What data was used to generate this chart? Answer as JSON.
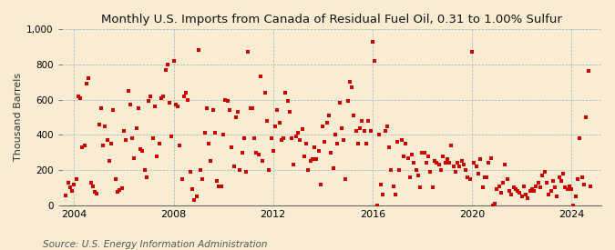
{
  "title": "Monthly U.S. Imports from Canada of Residual Fuel Oil, 0.31 to 1.00% Sulfur",
  "ylabel": "Thousand Barrels",
  "source_text": "Source: U.S. Energy Information Administration",
  "background_color": "#faecd2",
  "plot_bg_color": "#faecd2",
  "dot_color": "#cc0000",
  "ylim": [
    0,
    1000
  ],
  "yticks": [
    0,
    200,
    400,
    600,
    800,
    1000
  ],
  "xlim_start": 2003.5,
  "xlim_end": 2025.2,
  "xticks": [
    2004,
    2008,
    2012,
    2016,
    2020,
    2024
  ],
  "title_fontsize": 9.5,
  "ylabel_fontsize": 8,
  "source_fontsize": 7.5,
  "data_x": [
    2003.67,
    2003.75,
    2003.83,
    2003.92,
    2004.0,
    2004.08,
    2004.17,
    2004.25,
    2004.33,
    2004.42,
    2004.5,
    2004.58,
    2004.67,
    2004.75,
    2004.83,
    2004.92,
    2005.0,
    2005.08,
    2005.17,
    2005.25,
    2005.33,
    2005.42,
    2005.5,
    2005.58,
    2005.67,
    2005.75,
    2005.83,
    2005.92,
    2006.0,
    2006.08,
    2006.17,
    2006.25,
    2006.33,
    2006.42,
    2006.5,
    2006.58,
    2006.67,
    2006.75,
    2006.83,
    2006.92,
    2007.0,
    2007.08,
    2007.17,
    2007.25,
    2007.33,
    2007.42,
    2007.5,
    2007.58,
    2007.67,
    2007.75,
    2007.83,
    2007.92,
    2008.0,
    2008.08,
    2008.17,
    2008.25,
    2008.33,
    2008.42,
    2008.5,
    2008.58,
    2008.67,
    2008.75,
    2008.83,
    2008.92,
    2009.0,
    2009.08,
    2009.17,
    2009.25,
    2009.33,
    2009.42,
    2009.5,
    2009.58,
    2009.67,
    2009.75,
    2009.83,
    2009.92,
    2010.0,
    2010.08,
    2010.17,
    2010.25,
    2010.33,
    2010.42,
    2010.5,
    2010.58,
    2010.67,
    2010.75,
    2010.83,
    2010.92,
    2011.0,
    2011.08,
    2011.17,
    2011.25,
    2011.33,
    2011.42,
    2011.5,
    2011.58,
    2011.67,
    2011.75,
    2011.83,
    2011.92,
    2012.0,
    2012.08,
    2012.17,
    2012.25,
    2012.33,
    2012.42,
    2012.5,
    2012.58,
    2012.67,
    2012.75,
    2012.83,
    2012.92,
    2013.0,
    2013.08,
    2013.17,
    2013.25,
    2013.33,
    2013.42,
    2013.5,
    2013.58,
    2013.67,
    2013.75,
    2013.83,
    2013.92,
    2014.0,
    2014.08,
    2014.17,
    2014.25,
    2014.33,
    2014.42,
    2014.5,
    2014.58,
    2014.67,
    2014.75,
    2014.83,
    2014.92,
    2015.0,
    2015.08,
    2015.17,
    2015.25,
    2015.33,
    2015.42,
    2015.5,
    2015.58,
    2015.67,
    2015.75,
    2015.83,
    2015.92,
    2016.0,
    2016.08,
    2016.17,
    2016.25,
    2016.33,
    2016.42,
    2016.5,
    2016.58,
    2016.67,
    2016.75,
    2016.83,
    2016.92,
    2017.0,
    2017.08,
    2017.17,
    2017.25,
    2017.33,
    2017.42,
    2017.5,
    2017.58,
    2017.67,
    2017.75,
    2017.83,
    2017.92,
    2018.0,
    2018.08,
    2018.17,
    2018.25,
    2018.33,
    2018.42,
    2018.5,
    2018.58,
    2018.67,
    2018.75,
    2018.83,
    2018.92,
    2019.0,
    2019.08,
    2019.17,
    2019.25,
    2019.33,
    2019.42,
    2019.5,
    2019.58,
    2019.67,
    2019.75,
    2019.83,
    2019.92,
    2020.0,
    2020.08,
    2020.17,
    2020.25,
    2020.33,
    2020.42,
    2020.5,
    2020.58,
    2020.67,
    2020.75,
    2020.83,
    2020.92,
    2021.0,
    2021.08,
    2021.17,
    2021.25,
    2021.33,
    2021.42,
    2021.5,
    2021.58,
    2021.67,
    2021.75,
    2021.83,
    2021.92,
    2022.0,
    2022.08,
    2022.17,
    2022.25,
    2022.33,
    2022.42,
    2022.5,
    2022.58,
    2022.67,
    2022.75,
    2022.83,
    2022.92,
    2023.0,
    2023.08,
    2023.17,
    2023.25,
    2023.33,
    2023.42,
    2023.5,
    2023.58,
    2023.67,
    2023.75,
    2023.83,
    2023.92,
    2024.0,
    2024.08,
    2024.17,
    2024.25,
    2024.33,
    2024.42,
    2024.5,
    2024.58,
    2024.67,
    2024.75
  ],
  "data_y": [
    55,
    130,
    100,
    80,
    120,
    150,
    620,
    610,
    330,
    340,
    690,
    720,
    130,
    110,
    75,
    65,
    460,
    550,
    340,
    450,
    370,
    250,
    350,
    540,
    150,
    75,
    85,
    95,
    420,
    370,
    650,
    570,
    380,
    270,
    440,
    550,
    320,
    310,
    200,
    160,
    590,
    620,
    380,
    560,
    280,
    350,
    610,
    620,
    770,
    800,
    580,
    390,
    820,
    570,
    560,
    340,
    150,
    620,
    640,
    600,
    190,
    90,
    30,
    50,
    880,
    200,
    150,
    410,
    550,
    350,
    250,
    540,
    410,
    140,
    110,
    110,
    400,
    600,
    590,
    540,
    330,
    220,
    500,
    530,
    200,
    300,
    380,
    190,
    870,
    550,
    550,
    380,
    300,
    290,
    730,
    250,
    640,
    480,
    200,
    380,
    310,
    450,
    540,
    470,
    370,
    380,
    640,
    590,
    530,
    380,
    230,
    390,
    410,
    370,
    430,
    280,
    350,
    200,
    250,
    260,
    330,
    260,
    310,
    120,
    450,
    360,
    470,
    510,
    300,
    210,
    400,
    350,
    580,
    440,
    370,
    150,
    590,
    700,
    670,
    510,
    420,
    350,
    440,
    480,
    420,
    350,
    480,
    420,
    930,
    820,
    0,
    400,
    120,
    60,
    420,
    450,
    330,
    200,
    110,
    60,
    360,
    200,
    370,
    280,
    350,
    270,
    160,
    290,
    240,
    200,
    170,
    100,
    300,
    300,
    240,
    280,
    190,
    100,
    250,
    240,
    230,
    200,
    280,
    240,
    260,
    240,
    340,
    220,
    190,
    240,
    220,
    250,
    230,
    200,
    160,
    150,
    870,
    240,
    220,
    180,
    260,
    100,
    160,
    160,
    240,
    270,
    0,
    10,
    90,
    110,
    70,
    130,
    230,
    150,
    80,
    60,
    100,
    90,
    80,
    70,
    50,
    110,
    60,
    40,
    80,
    90,
    80,
    110,
    130,
    100,
    170,
    190,
    130,
    60,
    80,
    140,
    100,
    50,
    160,
    140,
    180,
    100,
    90,
    110,
    90,
    0,
    50,
    150,
    380,
    160,
    120,
    500,
    760,
    110
  ]
}
